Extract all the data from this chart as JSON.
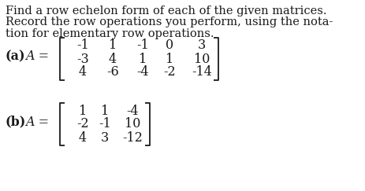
{
  "text_line1": "Find a row echelon form of each of the given matrices.",
  "text_line2": "Record the row operations you perform, using the nota-",
  "text_line3": "tion for elementary row operations.",
  "label_a": "(a)",
  "label_A_a": "A =",
  "matrix_a": [
    [
      "-1",
      "1",
      "-1",
      "0",
      "3"
    ],
    [
      "-3",
      "4",
      "1",
      "1",
      "10"
    ],
    [
      "4",
      "-6",
      "-4",
      "-2",
      "-14"
    ]
  ],
  "label_b": "(b)",
  "label_A_b": "A =",
  "matrix_b": [
    [
      "1",
      "1",
      "-4"
    ],
    [
      "-2",
      "-1",
      "10"
    ],
    [
      "4",
      "3",
      "-12"
    ]
  ],
  "bg_color": "#ffffff",
  "text_color": "#1a1a1a",
  "font_size_text": 10.5,
  "font_size_matrix": 11.5,
  "font_size_label": 11.5
}
